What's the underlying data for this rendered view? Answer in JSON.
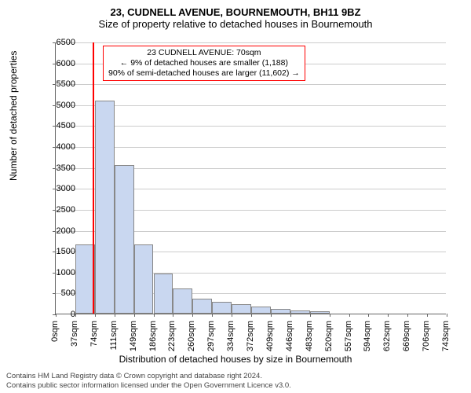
{
  "title": {
    "line1": "23, CUDNELL AVENUE, BOURNEMOUTH, BH11 9BZ",
    "line2": "Size of property relative to detached houses in Bournemouth"
  },
  "chart": {
    "type": "histogram",
    "ylabel": "Number of detached properties",
    "xlabel": "Distribution of detached houses by size in Bournemouth",
    "ylim": [
      0,
      6500
    ],
    "ytick_step": 500,
    "bar_color": "#c9d7f0",
    "bar_border": "#888888",
    "grid_color": "#cccccc",
    "background_color": "#ffffff",
    "marker_color": "#ff0000",
    "marker_x_value": 70,
    "x_tick_labels": [
      "0sqm",
      "37sqm",
      "74sqm",
      "111sqm",
      "149sqm",
      "186sqm",
      "223sqm",
      "260sqm",
      "297sqm",
      "334sqm",
      "372sqm",
      "409sqm",
      "446sqm",
      "483sqm",
      "520sqm",
      "557sqm",
      "594sqm",
      "632sqm",
      "669sqm",
      "706sqm",
      "743sqm"
    ],
    "values": [
      0,
      1650,
      5100,
      3550,
      1650,
      950,
      600,
      350,
      280,
      220,
      160,
      120,
      70,
      50,
      0,
      0,
      0,
      0,
      0,
      0
    ],
    "label_fontsize": 12,
    "tick_fontsize": 11
  },
  "callout": {
    "line1": "23 CUDNELL AVENUE: 70sqm",
    "line2": "← 9% of detached houses are smaller (1,188)",
    "line3": "90% of semi-detached houses are larger (11,602) →"
  },
  "footer": {
    "line1": "Contains HM Land Registry data © Crown copyright and database right 2024.",
    "line2": "Contains public sector information licensed under the Open Government Licence v3.0."
  }
}
